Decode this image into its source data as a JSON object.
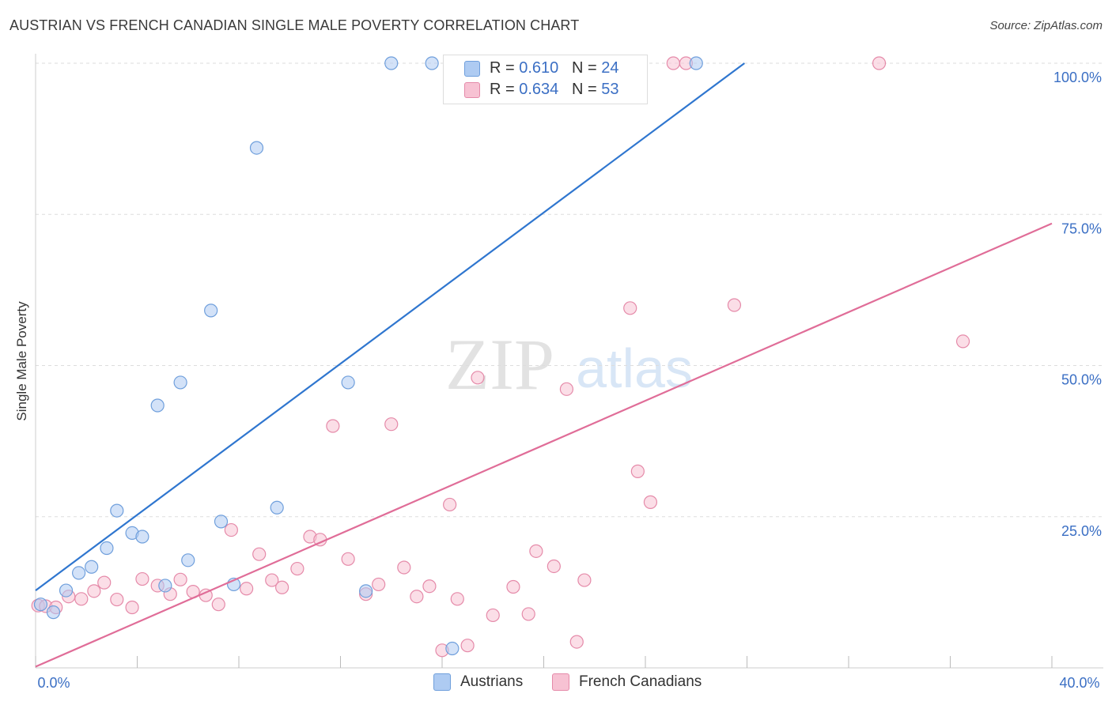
{
  "title": "AUSTRIAN VS FRENCH CANADIAN SINGLE MALE POVERTY CORRELATION CHART",
  "source": "Source: ZipAtlas.com",
  "watermark": {
    "zip": "ZIP",
    "atlas": "atlas"
  },
  "legend": {
    "austrians": {
      "r_label": "R =",
      "r_value": "0.610",
      "n_label": "N =",
      "n_value": "24"
    },
    "french": {
      "r_label": "R =",
      "r_value": "0.634",
      "n_label": "N =",
      "n_value": "53"
    }
  },
  "bottom_legend": {
    "austrians": "Austrians",
    "french": "French Canadians"
  },
  "colors": {
    "austrians_fill": "#aecbf2",
    "austrians_stroke": "#6f9fdc",
    "austrians_line": "#2f76cf",
    "french_fill": "#f7c2d3",
    "french_stroke": "#e58aa9",
    "french_line": "#e06d98",
    "tick_label": "#3b6fc4",
    "grid": "#dddddd"
  },
  "chart_data": {
    "type": "scatter",
    "title": "AUSTRIAN VS FRENCH CANADIAN SINGLE MALE POVERTY CORRELATION CHART",
    "xlabel": "",
    "ylabel": "Single Male Poverty",
    "xlim": [
      0,
      40
    ],
    "ylim": [
      0,
      100
    ],
    "x_tick_labels": [
      "0.0%",
      "40.0%"
    ],
    "y_ticks": [
      25,
      50,
      75,
      100
    ],
    "y_tick_labels": [
      "25.0%",
      "50.0%",
      "75.0%",
      "100.0%"
    ],
    "grid": "horizontal dashed",
    "series": [
      {
        "name": "Austrians",
        "points": [
          [
            0.2,
            10.5
          ],
          [
            0.7,
            9.2
          ],
          [
            1.2,
            12.8
          ],
          [
            1.7,
            15.7
          ],
          [
            2.2,
            16.7
          ],
          [
            2.8,
            19.8
          ],
          [
            3.2,
            26.0
          ],
          [
            3.8,
            22.3
          ],
          [
            4.2,
            21.7
          ],
          [
            4.8,
            43.4
          ],
          [
            5.1,
            13.6
          ],
          [
            5.7,
            47.2
          ],
          [
            6.0,
            17.8
          ],
          [
            6.9,
            59.1
          ],
          [
            7.3,
            24.2
          ],
          [
            7.8,
            13.8
          ],
          [
            8.7,
            86.0
          ],
          [
            9.5,
            26.5
          ],
          [
            12.3,
            47.2
          ],
          [
            13.0,
            12.7
          ],
          [
            14.0,
            100.0
          ],
          [
            15.6,
            100.0
          ],
          [
            16.4,
            3.2
          ],
          [
            26.0,
            100.0
          ]
        ]
      },
      {
        "name": "French Canadians",
        "points": [
          [
            0.1,
            10.3
          ],
          [
            0.4,
            10.2
          ],
          [
            0.8,
            10.0
          ],
          [
            1.3,
            11.8
          ],
          [
            1.8,
            11.4
          ],
          [
            2.3,
            12.7
          ],
          [
            2.7,
            14.1
          ],
          [
            3.2,
            11.3
          ],
          [
            3.8,
            10.0
          ],
          [
            4.2,
            14.7
          ],
          [
            4.8,
            13.6
          ],
          [
            5.3,
            12.2
          ],
          [
            5.7,
            14.6
          ],
          [
            6.2,
            12.6
          ],
          [
            6.7,
            12.0
          ],
          [
            7.2,
            10.5
          ],
          [
            7.7,
            22.8
          ],
          [
            8.3,
            13.1
          ],
          [
            8.8,
            18.8
          ],
          [
            9.3,
            14.5
          ],
          [
            9.7,
            13.3
          ],
          [
            10.3,
            16.4
          ],
          [
            10.8,
            21.7
          ],
          [
            11.2,
            21.2
          ],
          [
            11.7,
            40.0
          ],
          [
            12.3,
            18.0
          ],
          [
            13.0,
            12.2
          ],
          [
            13.5,
            13.8
          ],
          [
            14.0,
            40.3
          ],
          [
            14.5,
            16.6
          ],
          [
            15.0,
            11.8
          ],
          [
            15.5,
            13.5
          ],
          [
            16.0,
            2.9
          ],
          [
            16.3,
            27.0
          ],
          [
            16.6,
            11.4
          ],
          [
            17.0,
            3.7
          ],
          [
            17.4,
            48.0
          ],
          [
            18.0,
            8.7
          ],
          [
            18.8,
            13.4
          ],
          [
            19.4,
            8.9
          ],
          [
            19.7,
            19.3
          ],
          [
            20.4,
            16.8
          ],
          [
            20.9,
            46.1
          ],
          [
            21.3,
            4.3
          ],
          [
            21.6,
            14.5
          ],
          [
            23.4,
            59.5
          ],
          [
            23.7,
            32.5
          ],
          [
            24.2,
            27.4
          ],
          [
            25.1,
            100.0
          ],
          [
            25.6,
            100.0
          ],
          [
            27.5,
            60.0
          ],
          [
            33.2,
            100.0
          ],
          [
            36.5,
            54.0
          ]
        ]
      }
    ],
    "trend_lines": [
      {
        "name": "Austrians",
        "from": [
          0,
          12.8
        ],
        "to": [
          27.9,
          100.0
        ]
      },
      {
        "name": "French Canadians",
        "from": [
          0,
          0.2
        ],
        "to": [
          40,
          73.5
        ]
      }
    ]
  }
}
